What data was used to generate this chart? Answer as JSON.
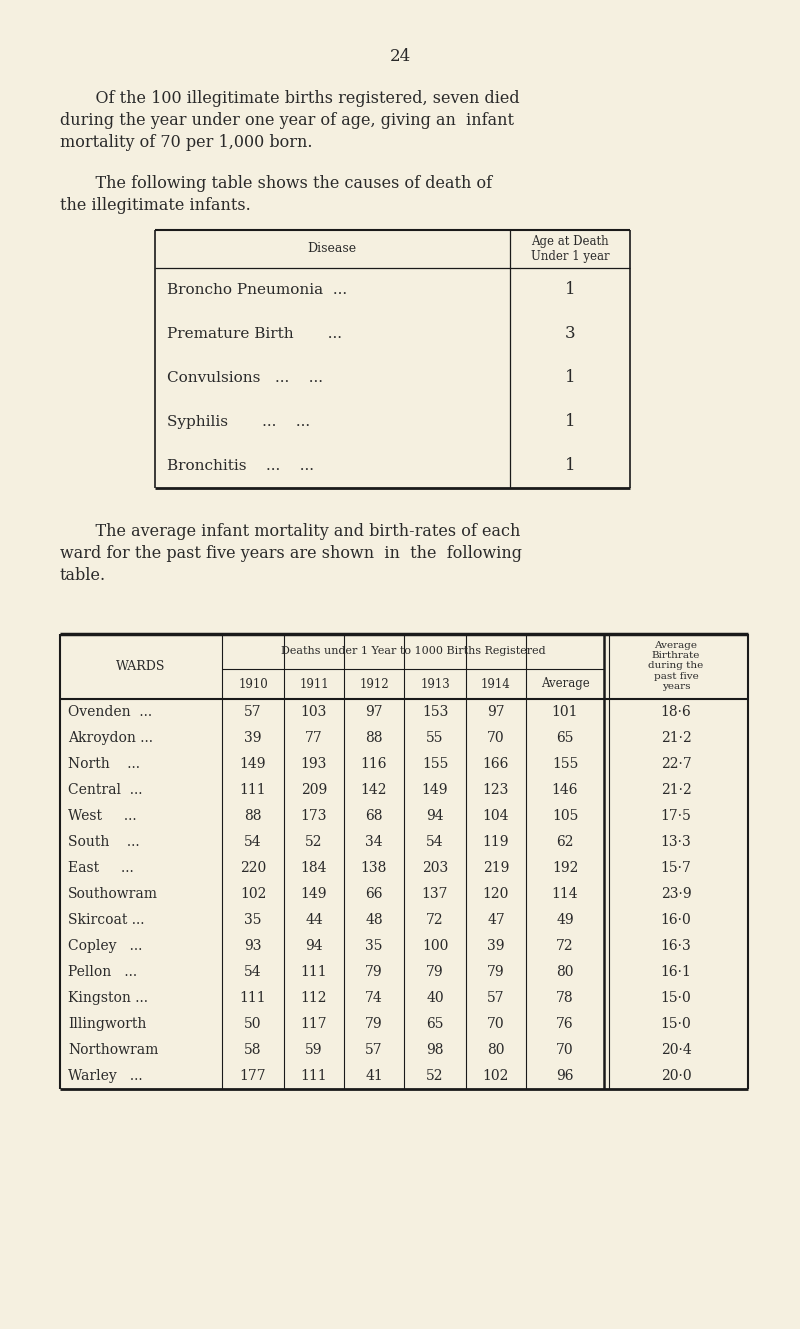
{
  "bg_color": "#f5f0e0",
  "page_number": "24",
  "para1_line1": "    Of the 100 illegitimate births registered, seven died",
  "para1_line2": "during the year under one year of age, giving an  infant",
  "para1_line3": "mortality of 70 per 1,000 born.",
  "para2_line1": "    The following table shows the causes of death of",
  "para2_line2": "the illegitimate infants.",
  "table1_col1_header": "Disease",
  "table1_col2_header": "Age at Death\nUnder 1 year",
  "table1_rows": [
    [
      "Broncho Pneumonia  ...",
      "1"
    ],
    [
      "Premature Birth       ...",
      "3"
    ],
    [
      "Convulsions   ...    ...",
      "1"
    ],
    [
      "Syphilis       ...    ...",
      "1"
    ],
    [
      "Bronchitis    ...    ...",
      "1"
    ]
  ],
  "para3_line1": "    The average infant mortality and birth-rates of each",
  "para3_line2": "ward for the past five years are shown  in  the  following",
  "para3_line3": "table.",
  "table2_ward_header": "WARDS",
  "table2_deaths_header": "Deaths under 1 Year to 1000 Births Registered",
  "table2_birth_header": "Average\nBirthrate\nduring the\npast five\nyears",
  "table2_year_headers": [
    "1910",
    "1911",
    "1912",
    "1913",
    "1914",
    "Average"
  ],
  "table2_rows": [
    [
      "Ovenden  ...",
      57,
      103,
      97,
      153,
      97,
      101,
      "18·6"
    ],
    [
      "Akroydon ...",
      39,
      77,
      88,
      55,
      70,
      65,
      "21·2"
    ],
    [
      "North    ...",
      149,
      193,
      116,
      155,
      166,
      155,
      "22·7"
    ],
    [
      "Central  ...",
      111,
      209,
      142,
      149,
      123,
      146,
      "21·2"
    ],
    [
      "West     ...",
      88,
      173,
      68,
      94,
      104,
      105,
      "17·5"
    ],
    [
      "South    ...",
      54,
      52,
      34,
      54,
      119,
      62,
      "13·3"
    ],
    [
      "East     ...",
      220,
      184,
      138,
      203,
      219,
      192,
      "15·7"
    ],
    [
      "Southowram",
      102,
      149,
      66,
      137,
      120,
      114,
      "23·9"
    ],
    [
      "Skircoat ...",
      35,
      44,
      48,
      72,
      47,
      49,
      "16·0"
    ],
    [
      "Copley   ...",
      93,
      94,
      35,
      100,
      39,
      72,
      "16·3"
    ],
    [
      "Pellon   ...",
      54,
      111,
      79,
      79,
      79,
      80,
      "16·1"
    ],
    [
      "Kingston ...",
      111,
      112,
      74,
      40,
      57,
      78,
      "15·0"
    ],
    [
      "Illingworth",
      50,
      117,
      79,
      65,
      70,
      76,
      "15·0"
    ],
    [
      "Northowram",
      58,
      59,
      57,
      98,
      80,
      70,
      "20·4"
    ],
    [
      "Warley   ...",
      177,
      111,
      41,
      52,
      102,
      96,
      "20·0"
    ]
  ],
  "text_color": "#2a2a2a",
  "line_color": "#1a1a1a"
}
